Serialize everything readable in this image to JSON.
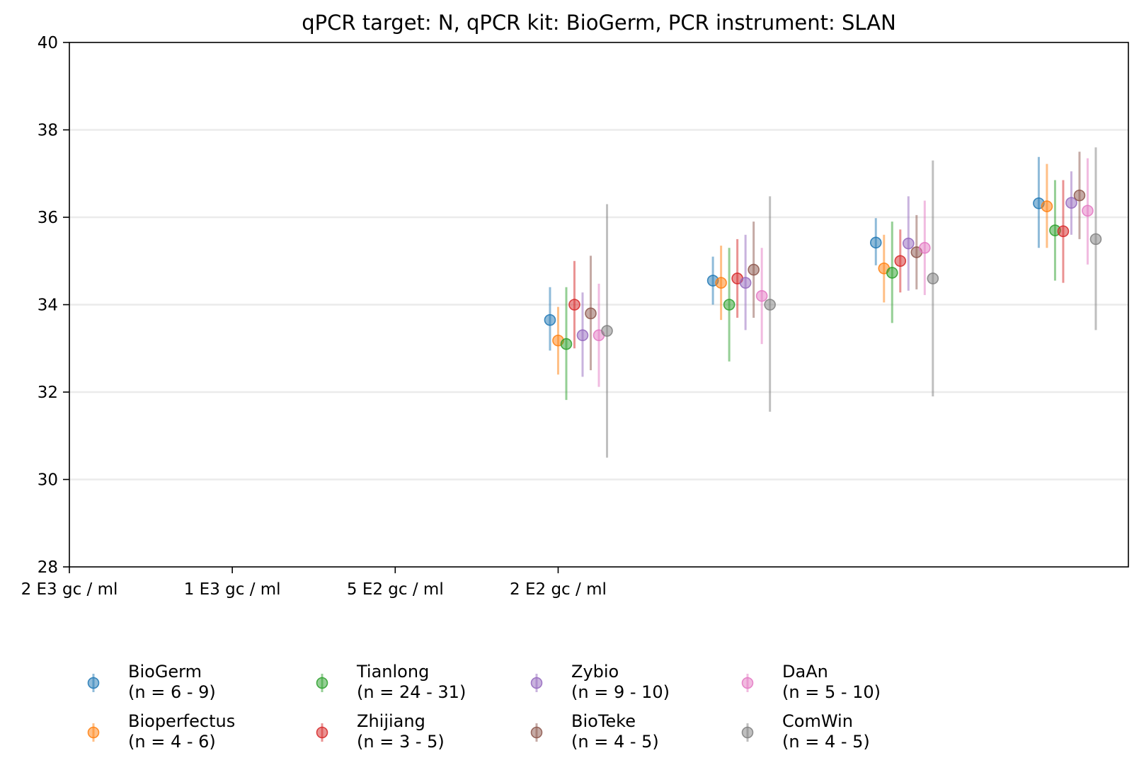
{
  "chart_data": {
    "type": "scatter",
    "title": "qPCR target: N, qPCR kit: BioGerm, PCR instrument: SLAN",
    "xlabel": "",
    "ylabel": "",
    "ylim": [
      28,
      40
    ],
    "yticks": [
      28,
      30,
      32,
      34,
      36,
      38,
      40
    ],
    "grid": "horizontal",
    "legend_placement": "bottom",
    "x_positions": [
      0,
      1,
      2,
      3,
      4,
      5,
      6
    ],
    "xlim": [
      0,
      6.5
    ],
    "xtick_labels": [
      "2 E3 gc / ml",
      "1 E3 gc / ml",
      "5 E2 gc / ml",
      "2 E2 gc / ml"
    ],
    "group_offsets": [
      -0.05,
      0.0,
      0.05,
      0.1,
      0.15,
      0.2,
      0.25,
      0.3,
      0.35
    ],
    "series": [
      {
        "name": "BioGerm",
        "n_label": "(n = 6 - 9)",
        "color": "#1f77b4",
        "points": [
          {
            "x": 3,
            "y": 33.65,
            "low": 32.95,
            "high": 34.4
          },
          {
            "x": 4,
            "y": 34.55,
            "low": 34.0,
            "high": 35.1
          },
          {
            "x": 5,
            "y": 35.42,
            "low": 34.9,
            "high": 35.98
          },
          {
            "x": 6,
            "y": 36.32,
            "low": 35.3,
            "high": 37.38
          }
        ]
      },
      {
        "name": "Bioperfectus",
        "n_label": "(n = 4 - 6)",
        "color": "#ff7f0e",
        "points": [
          {
            "x": 3,
            "y": 33.18,
            "low": 32.4,
            "high": 33.95
          },
          {
            "x": 4,
            "y": 34.5,
            "low": 33.65,
            "high": 35.35
          },
          {
            "x": 5,
            "y": 34.83,
            "low": 34.05,
            "high": 35.6
          },
          {
            "x": 6,
            "y": 36.25,
            "low": 35.3,
            "high": 37.22
          }
        ]
      },
      {
        "name": "Tianlong",
        "n_label": "(n = 24 - 31)",
        "color": "#2ca02c",
        "points": [
          {
            "x": 3,
            "y": 33.1,
            "low": 31.82,
            "high": 34.4
          },
          {
            "x": 4,
            "y": 34.0,
            "low": 32.7,
            "high": 35.3
          },
          {
            "x": 5,
            "y": 34.73,
            "low": 33.58,
            "high": 35.9
          },
          {
            "x": 6,
            "y": 35.7,
            "low": 34.55,
            "high": 36.85
          }
        ]
      },
      {
        "name": "Zhijiang",
        "n_label": "(n = 3 - 5)",
        "color": "#d62728",
        "points": [
          {
            "x": 3,
            "y": 34.0,
            "low": 33.0,
            "high": 35.0
          },
          {
            "x": 4,
            "y": 34.6,
            "low": 33.7,
            "high": 35.5
          },
          {
            "x": 5,
            "y": 35.0,
            "low": 34.28,
            "high": 35.72
          },
          {
            "x": 6,
            "y": 35.68,
            "low": 34.5,
            "high": 36.85
          }
        ]
      },
      {
        "name": "Zybio",
        "n_label": "(n = 9 - 10)",
        "color": "#9467bd",
        "points": [
          {
            "x": 3,
            "y": 33.3,
            "low": 32.35,
            "high": 34.28
          },
          {
            "x": 4,
            "y": 34.5,
            "low": 33.42,
            "high": 35.6
          },
          {
            "x": 5,
            "y": 35.4,
            "low": 34.32,
            "high": 36.48
          },
          {
            "x": 6,
            "y": 36.33,
            "low": 35.6,
            "high": 37.05
          }
        ]
      },
      {
        "name": "BioTeke",
        "n_label": "(n = 4 - 5)",
        "color": "#8c564b",
        "points": [
          {
            "x": 3,
            "y": 33.8,
            "low": 32.5,
            "high": 35.12
          },
          {
            "x": 4,
            "y": 34.8,
            "low": 33.7,
            "high": 35.9
          },
          {
            "x": 5,
            "y": 35.2,
            "low": 34.35,
            "high": 36.05
          },
          {
            "x": 6,
            "y": 36.5,
            "low": 35.5,
            "high": 37.5
          }
        ]
      },
      {
        "name": "DaAn",
        "n_label": "(n = 5 - 10)",
        "color": "#e377c2",
        "points": [
          {
            "x": 3,
            "y": 33.3,
            "low": 32.12,
            "high": 34.48
          },
          {
            "x": 4,
            "y": 34.2,
            "low": 33.1,
            "high": 35.3
          },
          {
            "x": 5,
            "y": 35.3,
            "low": 34.22,
            "high": 36.38
          },
          {
            "x": 6,
            "y": 36.15,
            "low": 34.92,
            "high": 37.35
          }
        ]
      },
      {
        "name": "ComWin",
        "n_label": "(n = 4 - 5)",
        "color": "#7f7f7f",
        "points": [
          {
            "x": 3,
            "y": 33.4,
            "low": 30.5,
            "high": 36.3
          },
          {
            "x": 4,
            "y": 34.0,
            "low": 31.55,
            "high": 36.48
          },
          {
            "x": 5,
            "y": 34.6,
            "low": 31.9,
            "high": 37.3
          },
          {
            "x": 6,
            "y": 35.5,
            "low": 33.42,
            "high": 37.6
          }
        ]
      }
    ]
  }
}
